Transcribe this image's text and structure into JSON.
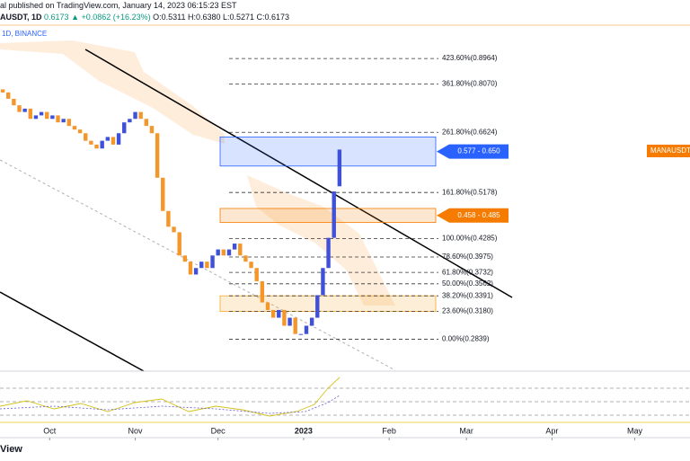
{
  "header": {
    "line1": "al published on TradingView.com, January 14, 2023 06:15:23 EST",
    "symbol": "AUSDT, 1D",
    "price": "0.6173",
    "change": "+0.0862 (+16.23%)",
    "ohlc": "O:0.5311 H:0.6380 L:0.5271 C:0.6173"
  },
  "pane_label": "1D, BINANCE",
  "price_tag": "MANAUSDT",
  "logo": "View",
  "chart_data": {
    "type": "candlestick",
    "categories": [
      null,
      null,
      null,
      null,
      null,
      null,
      null,
      null,
      null,
      null,
      null,
      null,
      null,
      null,
      null,
      null,
      null,
      null,
      null,
      null,
      null,
      null,
      null,
      null,
      null,
      null,
      null,
      null,
      null,
      null,
      null,
      null,
      null,
      null,
      null,
      null,
      null,
      null,
      null,
      null,
      null,
      null,
      null,
      null,
      null,
      null,
      null,
      null,
      null,
      null,
      null,
      null,
      null,
      null,
      null,
      null,
      null,
      null,
      null,
      null,
      null,
      null
    ],
    "open": [
      0.79,
      0.78,
      0.76,
      0.74,
      0.72,
      0.73,
      0.7,
      0.71,
      0.72,
      0.7,
      0.71,
      0.69,
      0.7,
      0.68,
      0.67,
      0.66,
      0.64,
      0.63,
      0.62,
      0.64,
      0.65,
      0.63,
      0.66,
      0.69,
      0.7,
      0.72,
      0.7,
      0.68,
      0.66,
      0.55,
      0.48,
      0.45,
      0.44,
      0.4,
      0.39,
      0.37,
      0.38,
      0.39,
      0.38,
      0.4,
      0.41,
      0.4,
      0.41,
      0.42,
      0.4,
      0.39,
      0.38,
      0.36,
      0.33,
      0.32,
      0.31,
      0.32,
      0.3,
      0.31,
      0.29,
      0.29,
      0.3,
      0.31,
      0.34,
      0.38,
      0.43,
      0.5311
    ],
    "close": [
      0.78,
      0.76,
      0.74,
      0.72,
      0.73,
      0.7,
      0.71,
      0.72,
      0.7,
      0.71,
      0.69,
      0.7,
      0.68,
      0.67,
      0.66,
      0.64,
      0.63,
      0.62,
      0.64,
      0.65,
      0.63,
      0.66,
      0.69,
      0.7,
      0.72,
      0.7,
      0.68,
      0.66,
      0.55,
      0.48,
      0.45,
      0.44,
      0.4,
      0.39,
      0.37,
      0.38,
      0.39,
      0.38,
      0.4,
      0.41,
      0.4,
      0.41,
      0.42,
      0.4,
      0.39,
      0.38,
      0.36,
      0.33,
      0.32,
      0.31,
      0.32,
      0.3,
      0.31,
      0.29,
      0.29,
      0.3,
      0.31,
      0.34,
      0.38,
      0.43,
      0.52,
      0.6173
    ],
    "colors": {
      "up": "#3f51d8",
      "down": "#f5962a"
    },
    "log_scale": true,
    "ylim": [
      0.25,
      1.02
    ],
    "xlim": [
      -0.5,
      124.5
    ],
    "xticks": [
      {
        "value": 8.5,
        "label": "Oct"
      },
      {
        "value": 24,
        "label": "Nov"
      },
      {
        "value": 39,
        "label": "Dec"
      },
      {
        "value": 54.5,
        "label": "2023"
      },
      {
        "value": 70,
        "label": "Feb"
      },
      {
        "value": 84,
        "label": "Mar"
      },
      {
        "value": 99.5,
        "label": "Apr"
      },
      {
        "value": 114.5,
        "label": "May"
      }
    ],
    "levels": [
      {
        "value": 0.8964,
        "label": "423.60%(0.8964)"
      },
      {
        "value": 0.807,
        "label": "361.80%(0.8070)"
      },
      {
        "value": 0.6624,
        "label": "261.80%(0.6624)"
      },
      {
        "value": 0.5178,
        "label": "161.80%(0.5178)"
      },
      {
        "value": 0.4285,
        "label": "100.00%(0.4285)"
      },
      {
        "value": 0.3975,
        "label": "78.60%(0.3975)"
      },
      {
        "value": 0.3732,
        "label": "61.80%(0.3732)"
      },
      {
        "value": 0.3562,
        "label": "50.00%(0.3562)"
      },
      {
        "value": 0.3391,
        "label": "38.20%(0.3391)"
      },
      {
        "value": 0.318,
        "label": "23.60%(0.3180)"
      },
      {
        "value": 0.2839,
        "label": "0.00%(0.2839)"
      }
    ],
    "zones": [
      {
        "low": 0.577,
        "high": 0.65,
        "label": "0.577 - 0.650",
        "color": "#2962ff"
      },
      {
        "low": 0.458,
        "high": 0.485,
        "label": "0.458 - 0.485",
        "color": "#f57c00"
      },
      {
        "low": 0.318,
        "high": 0.3391,
        "color": "#f5a623"
      }
    ]
  }
}
